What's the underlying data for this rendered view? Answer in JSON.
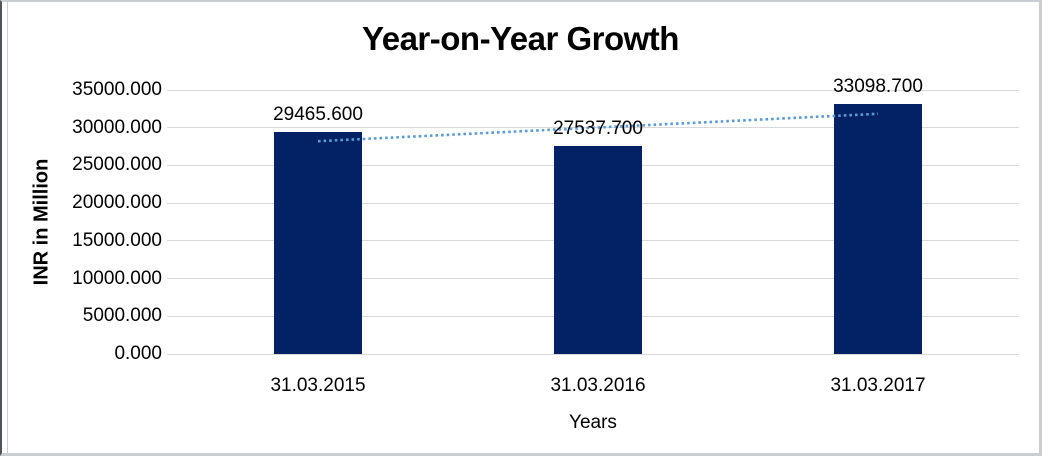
{
  "window": {
    "background": "#ffffff",
    "frame_border_color": "#caced2",
    "left_edge_color": "#54545c"
  },
  "chart_data": {
    "type": "bar",
    "title": "Year-on-Year Growth",
    "xlabel": "Years",
    "ylabel": "INR in Million",
    "categories": [
      "31.03.2015",
      "31.03.2016",
      "31.03.2017"
    ],
    "values": [
      29465.6,
      27537.7,
      33098.7
    ],
    "value_labels": [
      "29465.600",
      "27537.700",
      "33098.700"
    ],
    "ylim": [
      0,
      35000
    ],
    "y_tick_step": 5000,
    "y_tick_labels": [
      "0.000",
      "5000.000",
      "10000.000",
      "15000.000",
      "20000.000",
      "25000.000",
      "30000.000",
      "35000.000"
    ],
    "grid": true,
    "legend": false,
    "bar_color": "#032265",
    "gridline_color": "#d9d9d9",
    "text_color": "#000000",
    "trendline": {
      "present": true,
      "fit": "linear",
      "style": "dotted",
      "color": "#5b9bd5"
    }
  }
}
